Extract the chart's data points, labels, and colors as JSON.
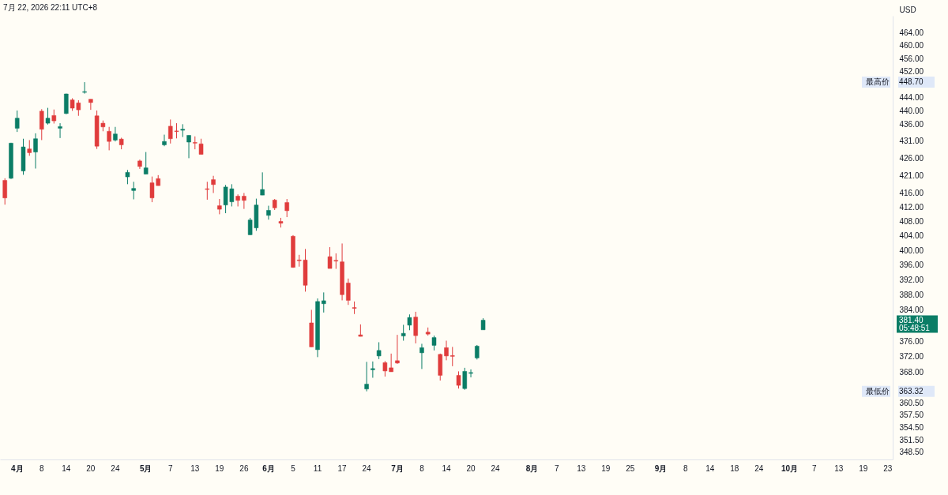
{
  "chart_data": {
    "type": "candlestick",
    "title": "7月 22, 2026 22:11 UTC+8",
    "ylabel": "USD",
    "log": true,
    "categories": [
      null,
      null,
      "4月",
      null,
      null,
      null,
      "8",
      null,
      null,
      null,
      "14",
      null,
      null,
      null,
      "20",
      null,
      null,
      null,
      "24",
      null,
      null,
      null,
      null,
      "5月",
      null,
      null,
      null,
      "7",
      null,
      null,
      null,
      "13",
      null,
      null,
      null,
      "19",
      null,
      null,
      null,
      "26",
      null,
      null,
      null,
      "6月",
      null,
      null,
      null,
      "5",
      null,
      null,
      null,
      "11",
      null,
      null,
      null,
      "17",
      null,
      null,
      null,
      "24",
      null,
      null,
      null,
      null,
      "7月",
      null,
      null,
      null,
      "8",
      null,
      null,
      null,
      "14",
      null,
      null,
      null,
      "20",
      null,
      null,
      null,
      "24",
      null,
      null,
      null,
      null,
      null,
      "8月",
      null,
      null,
      null,
      "7",
      null,
      null,
      null,
      "13",
      null,
      null,
      null,
      "19",
      null,
      null,
      null,
      "25",
      null,
      null,
      null,
      null,
      "9月",
      null,
      null,
      null,
      "8",
      null,
      null,
      null,
      "14",
      null,
      null,
      null,
      "18",
      null,
      null,
      null,
      "24",
      null,
      null,
      null,
      null,
      "10月",
      null,
      null,
      null,
      "7",
      null,
      null,
      null,
      "13",
      null,
      null,
      null,
      "19",
      null,
      null,
      null,
      "23"
    ],
    "ohlc": [
      [
        419.6,
        420.2,
        412.7,
        414.6
      ],
      [
        420.2,
        430.5,
        420.0,
        430.4
      ],
      [
        434.8,
        440.1,
        433.7,
        437.8
      ],
      [
        422.3,
        431.7,
        421.2,
        429.3
      ],
      [
        428.7,
        431.3,
        426.7,
        427.6
      ],
      [
        427.8,
        433.3,
        423.0,
        431.7
      ],
      [
        439.9,
        440.5,
        431.3,
        434.5
      ],
      [
        436.3,
        440.9,
        435.9,
        437.8
      ],
      [
        438.6,
        440.4,
        436.2,
        437.0
      ],
      [
        434.8,
        436.3,
        431.9,
        435.3
      ],
      [
        439.2,
        445.2,
        439.0,
        445.1
      ],
      [
        443.3,
        443.8,
        440.0,
        440.8
      ],
      [
        442.4,
        443.2,
        438.5,
        440.3
      ],
      [
        445.6,
        448.7,
        445.2,
        445.8
      ],
      [
        443.5,
        443.5,
        440.3,
        442.5
      ],
      [
        438.5,
        440.1,
        428.7,
        429.5
      ],
      [
        436.3,
        437.1,
        433.9,
        435.2
      ],
      [
        433.9,
        435.2,
        428.3,
        430.9
      ],
      [
        431.3,
        435.2,
        430.9,
        433.1
      ],
      [
        431.6,
        432.0,
        428.6,
        429.9
      ],
      [
        420.6,
        422.6,
        418.5,
        421.9
      ],
      [
        416.7,
        419.2,
        414.2,
        417.3
      ],
      [
        425.2,
        425.6,
        422.9,
        423.6
      ],
      [
        421.4,
        427.8,
        421.4,
        423.2
      ],
      [
        418.9,
        420.7,
        413.4,
        414.6
      ],
      [
        420.1,
        421.1,
        418.1,
        418.1
      ],
      [
        429.9,
        432.9,
        429.5,
        430.9
      ],
      [
        435.4,
        437.4,
        430.3,
        431.7
      ],
      [
        434.0,
        436.3,
        431.8,
        433.8
      ],
      [
        434.2,
        436.0,
        432.2,
        434.5
      ],
      [
        430.7,
        432.7,
        426.0,
        432.7
      ],
      [
        430.6,
        432.4,
        428.6,
        430.4
      ],
      [
        430.2,
        431.7,
        427.1,
        427.1
      ],
      [
        417.2,
        419.2,
        414.1,
        417.0
      ],
      [
        419.8,
        420.9,
        416.0,
        418.4
      ],
      [
        412.4,
        414.3,
        410.0,
        411.4
      ],
      [
        412.6,
        418.3,
        410.3,
        417.7
      ],
      [
        413.5,
        418.5,
        412.2,
        417.2
      ],
      [
        415.1,
        415.6,
        412.2,
        413.9
      ],
      [
        415.1,
        416.0,
        411.5,
        413.9
      ],
      [
        404.3,
        409.0,
        404.2,
        408.4
      ],
      [
        406.2,
        414.4,
        405.4,
        412.6
      ],
      [
        415.4,
        421.9,
        415.4,
        417.0
      ],
      [
        409.7,
        412.4,
        408.5,
        411.1
      ],
      [
        414.0,
        414.3,
        411.2,
        411.8
      ],
      [
        408.0,
        409.0,
        406.3,
        407.5
      ],
      [
        413.3,
        414.3,
        409.2,
        411.0
      ],
      [
        403.9,
        404.2,
        395.3,
        395.4
      ],
      [
        397.4,
        398.8,
        395.6,
        397.2
      ],
      [
        397.4,
        400.4,
        388.9,
        390.6
      ],
      [
        380.7,
        384.1,
        374.5,
        374.5
      ],
      [
        373.8,
        387.1,
        371.9,
        386.3
      ],
      [
        385.7,
        388.7,
        383.4,
        386.5
      ],
      [
        398.3,
        400.9,
        395.1,
        395.1
      ],
      [
        397.3,
        399.2,
        395.0,
        397.1
      ],
      [
        396.9,
        401.9,
        386.6,
        388.1
      ],
      [
        391.2,
        392.4,
        385.4,
        386.6
      ],
      [
        384.7,
        386.3,
        383.0,
        384.5
      ],
      [
        377.6,
        380.3,
        377.2,
        377.2
      ],
      [
        363.9,
        370.7,
        363.32,
        365.1
      ],
      [
        368.7,
        370.8,
        366.7,
        369.0
      ],
      [
        372.2,
        375.7,
        371.4,
        373.6
      ],
      [
        370.5,
        370.9,
        367.0,
        368.4
      ],
      [
        369.2,
        372.8,
        368.2,
        368.2
      ],
      [
        371.0,
        377.6,
        370.2,
        370.4
      ],
      [
        377.3,
        380.2,
        376.1,
        378.0
      ],
      [
        380.1,
        382.9,
        378.8,
        382.1
      ],
      [
        382.2,
        383.6,
        375.4,
        377.4
      ],
      [
        373.0,
        375.3,
        368.9,
        374.3
      ],
      [
        378.3,
        379.5,
        377.4,
        377.8
      ],
      [
        374.9,
        377.4,
        373.6,
        376.9
      ],
      [
        372.6,
        372.8,
        366.0,
        367.3
      ],
      [
        374.3,
        376.1,
        371.1,
        372.2
      ],
      [
        372.3,
        374.5,
        369.6,
        372.1
      ],
      [
        367.3,
        368.3,
        364.0,
        364.8
      ],
      [
        364.0,
        369.2,
        363.7,
        368.3
      ],
      [
        367.8,
        368.8,
        366.8,
        368.0
      ],
      [
        371.7,
        375.0,
        371.3,
        374.7
      ],
      [
        378.9,
        381.9,
        378.9,
        381.4
      ],
      null,
      null,
      null,
      null,
      null,
      null,
      null,
      null,
      null,
      null,
      null,
      null,
      null,
      null,
      null,
      null,
      null,
      null,
      null,
      null,
      null,
      null,
      null,
      null,
      null,
      null,
      null,
      null,
      null,
      null,
      null,
      null,
      null,
      null,
      null,
      null,
      null,
      null,
      null,
      null,
      null,
      null,
      null,
      null,
      null,
      null,
      null,
      null,
      null,
      null,
      null,
      null,
      null,
      null,
      null,
      null,
      null,
      null,
      null,
      null,
      null,
      null,
      null,
      null,
      null,
      null
    ],
    "colors": [
      "#e03c3c",
      "#0b7d66",
      "#0b7d66",
      "#0b7d66",
      "#e03c3c",
      "#0b7d66",
      "#e03c3c",
      "#0b7d66",
      "#e03c3c",
      "#0b7d66",
      "#0b7d66",
      "#e03c3c",
      "#e03c3c",
      "#0b7d66",
      "#e03c3c",
      "#e03c3c",
      "#e03c3c",
      "#e03c3c",
      "#0b7d66",
      "#e03c3c",
      "#0b7d66",
      "#0b7d66",
      "#e03c3c",
      "#0b7d66",
      "#e03c3c",
      "#e03c3c",
      "#0b7d66",
      "#e03c3c",
      "#e03c3c",
      "#0b7d66",
      "#0b7d66",
      "#e03c3c",
      "#e03c3c",
      "#e03c3c",
      "#e03c3c",
      "#e03c3c",
      "#0b7d66",
      "#0b7d66",
      "#e03c3c",
      "#e03c3c",
      "#0b7d66",
      "#0b7d66",
      "#0b7d66",
      "#0b7d66",
      "#e03c3c",
      "#e03c3c",
      "#e03c3c",
      "#e03c3c",
      "#e03c3c",
      "#e03c3c",
      "#e03c3c",
      "#0b7d66",
      "#0b7d66",
      "#e03c3c",
      "#e03c3c",
      "#e03c3c",
      "#e03c3c",
      "#e03c3c",
      "#e03c3c",
      "#0b7d66",
      "#0b7d66",
      "#0b7d66",
      "#e03c3c",
      "#e03c3c",
      "#e03c3c",
      "#0b7d66",
      "#0b7d66",
      "#e03c3c",
      "#0b7d66",
      "#e03c3c",
      "#0b7d66",
      "#e03c3c",
      "#e03c3c",
      "#e03c3c",
      "#e03c3c",
      "#0b7d66",
      "#0b7d66",
      "#0b7d66",
      "#0b7d66",
      null,
      null,
      null,
      null,
      null,
      null,
      null,
      null,
      null,
      null,
      null,
      null,
      null,
      null,
      null,
      null,
      null,
      null,
      null,
      null,
      null,
      null,
      null,
      null,
      null,
      null,
      null,
      null,
      null,
      null,
      null,
      null,
      null,
      null,
      null,
      null,
      null,
      null,
      null,
      null,
      null,
      null,
      null,
      null,
      null,
      null,
      null,
      null,
      null,
      null,
      null,
      null,
      null,
      null,
      null,
      null,
      null,
      null,
      null,
      null,
      null,
      null,
      null,
      null,
      null,
      null
    ],
    "ylim": [
      346.8,
      469.5
    ],
    "yticks": [
      {
        "value": 348.5,
        "label": "348.50"
      },
      {
        "value": 351.5,
        "label": "351.50"
      },
      {
        "value": 354.5,
        "label": "354.50"
      },
      {
        "value": 357.5,
        "label": "357.50"
      },
      {
        "value": 360.5,
        "label": "360.50"
      },
      {
        "value": 368,
        "label": "368.00"
      },
      {
        "value": 372,
        "label": "372.00"
      },
      {
        "value": 376,
        "label": "376.00"
      },
      {
        "value": 384,
        "label": "384.00"
      },
      {
        "value": 388,
        "label": "388.00"
      },
      {
        "value": 392,
        "label": "392.00"
      },
      {
        "value": 396,
        "label": "396.00"
      },
      {
        "value": 400,
        "label": "400.00"
      },
      {
        "value": 404,
        "label": "404.00"
      },
      {
        "value": 408,
        "label": "408.00"
      },
      {
        "value": 412,
        "label": "412.00"
      },
      {
        "value": 416,
        "label": "416.00"
      },
      {
        "value": 421,
        "label": "421.00"
      },
      {
        "value": 426,
        "label": "426.00"
      },
      {
        "value": 431,
        "label": "431.00"
      },
      {
        "value": 436,
        "label": "436.00"
      },
      {
        "value": 440,
        "label": "440.00"
      },
      {
        "value": 444,
        "label": "444.00"
      },
      {
        "value": 452,
        "label": "452.00"
      },
      {
        "value": 456,
        "label": "456.00"
      },
      {
        "value": 460,
        "label": "460.00"
      },
      {
        "value": 464,
        "label": "464.00"
      }
    ],
    "annotations": [
      "最高价",
      "448.70",
      "最低价",
      "363.32",
      "381.40",
      "05:48:51"
    ]
  }
}
